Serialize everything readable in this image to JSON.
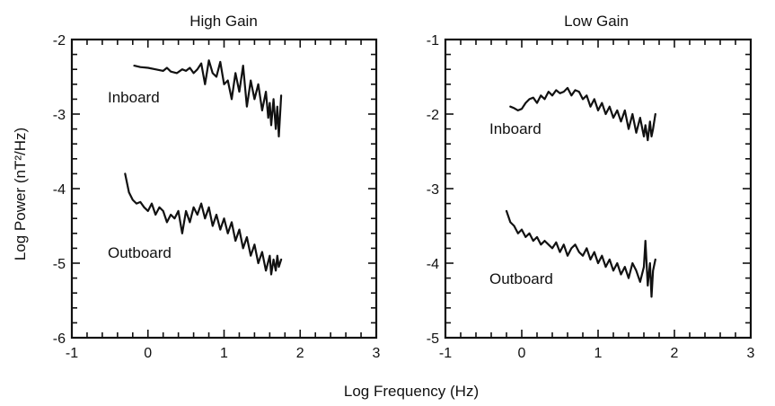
{
  "figure": {
    "ylabel": "Log Power (nT²/Hz)",
    "xlabel": "Log Frequency (Hz)"
  },
  "chart_data": [
    {
      "type": "line",
      "title": "High Gain",
      "xlabel": "Log Frequency (Hz)",
      "ylabel": "Log Power (nT²/Hz)",
      "xlim": [
        -1,
        3
      ],
      "ylim": [
        -6,
        -2
      ],
      "x_ticks": [
        -1,
        0,
        1,
        2,
        3
      ],
      "y_ticks": [
        -6,
        -5,
        -4,
        -3,
        -2
      ],
      "grid": false,
      "legend": "none",
      "series": [
        {
          "name": "Inboard",
          "x": [
            -0.18,
            -0.1,
            0.0,
            0.1,
            0.2,
            0.25,
            0.3,
            0.38,
            0.45,
            0.5,
            0.55,
            0.6,
            0.65,
            0.7,
            0.75,
            0.8,
            0.85,
            0.9,
            0.95,
            1.0,
            1.05,
            1.1,
            1.15,
            1.2,
            1.25,
            1.3,
            1.35,
            1.4,
            1.45,
            1.5,
            1.55,
            1.58,
            1.6,
            1.62,
            1.65,
            1.68,
            1.7,
            1.72,
            1.75
          ],
          "y": [
            -2.35,
            -2.37,
            -2.38,
            -2.4,
            -2.42,
            -2.38,
            -2.43,
            -2.45,
            -2.4,
            -2.42,
            -2.38,
            -2.45,
            -2.4,
            -2.32,
            -2.6,
            -2.28,
            -2.45,
            -2.5,
            -2.3,
            -2.6,
            -2.55,
            -2.8,
            -2.45,
            -2.7,
            -2.35,
            -2.9,
            -2.55,
            -2.8,
            -2.6,
            -2.95,
            -2.7,
            -3.05,
            -2.85,
            -3.15,
            -2.8,
            -3.2,
            -2.9,
            -3.3,
            -2.75
          ]
        },
        {
          "name": "Outboard",
          "x": [
            -0.3,
            -0.25,
            -0.2,
            -0.15,
            -0.1,
            -0.05,
            0.0,
            0.05,
            0.1,
            0.15,
            0.2,
            0.25,
            0.3,
            0.35,
            0.4,
            0.45,
            0.5,
            0.55,
            0.6,
            0.65,
            0.7,
            0.75,
            0.8,
            0.85,
            0.9,
            0.95,
            1.0,
            1.05,
            1.1,
            1.15,
            1.2,
            1.25,
            1.3,
            1.35,
            1.4,
            1.45,
            1.5,
            1.55,
            1.6,
            1.62,
            1.65,
            1.68,
            1.7,
            1.72,
            1.75
          ],
          "y": [
            -3.8,
            -4.05,
            -4.15,
            -4.2,
            -4.18,
            -4.25,
            -4.3,
            -4.2,
            -4.35,
            -4.25,
            -4.3,
            -4.45,
            -4.35,
            -4.4,
            -4.3,
            -4.6,
            -4.3,
            -4.45,
            -4.25,
            -4.35,
            -4.2,
            -4.4,
            -4.25,
            -4.5,
            -4.35,
            -4.55,
            -4.4,
            -4.6,
            -4.45,
            -4.7,
            -4.55,
            -4.8,
            -4.65,
            -4.9,
            -4.75,
            -5.0,
            -4.85,
            -5.1,
            -4.9,
            -5.15,
            -4.95,
            -5.1,
            -4.9,
            -5.05,
            -4.95
          ]
        }
      ]
    },
    {
      "type": "line",
      "title": "Low Gain",
      "xlabel": "Log Frequency (Hz)",
      "ylabel": "Log Power (nT²/Hz)",
      "xlim": [
        -1,
        3
      ],
      "ylim": [
        -5,
        -1
      ],
      "x_ticks": [
        -1,
        0,
        1,
        2,
        3
      ],
      "y_ticks": [
        -5,
        -4,
        -3,
        -2,
        -1
      ],
      "grid": false,
      "legend": "none",
      "series": [
        {
          "name": "Inboard",
          "x": [
            -0.15,
            -0.1,
            -0.05,
            0.0,
            0.05,
            0.1,
            0.15,
            0.2,
            0.25,
            0.3,
            0.35,
            0.4,
            0.45,
            0.5,
            0.55,
            0.6,
            0.65,
            0.7,
            0.75,
            0.8,
            0.85,
            0.9,
            0.95,
            1.0,
            1.05,
            1.1,
            1.15,
            1.2,
            1.25,
            1.3,
            1.35,
            1.4,
            1.45,
            1.5,
            1.55,
            1.6,
            1.62,
            1.65,
            1.68,
            1.7,
            1.72,
            1.75
          ],
          "y": [
            -1.9,
            -1.92,
            -1.95,
            -1.93,
            -1.85,
            -1.8,
            -1.78,
            -1.85,
            -1.75,
            -1.8,
            -1.7,
            -1.75,
            -1.68,
            -1.72,
            -1.7,
            -1.65,
            -1.75,
            -1.68,
            -1.7,
            -1.8,
            -1.75,
            -1.9,
            -1.8,
            -1.95,
            -1.85,
            -2.0,
            -1.9,
            -2.05,
            -1.95,
            -2.1,
            -1.95,
            -2.2,
            -2.0,
            -2.25,
            -2.05,
            -2.3,
            -2.15,
            -2.35,
            -2.1,
            -2.3,
            -2.2,
            -2.0
          ]
        },
        {
          "name": "Outboard",
          "x": [
            -0.2,
            -0.15,
            -0.1,
            -0.05,
            0.0,
            0.05,
            0.1,
            0.15,
            0.2,
            0.25,
            0.3,
            0.35,
            0.4,
            0.45,
            0.5,
            0.55,
            0.6,
            0.65,
            0.7,
            0.75,
            0.8,
            0.85,
            0.9,
            0.95,
            1.0,
            1.05,
            1.1,
            1.15,
            1.2,
            1.25,
            1.3,
            1.35,
            1.4,
            1.45,
            1.5,
            1.55,
            1.6,
            1.62,
            1.65,
            1.68,
            1.7,
            1.72,
            1.75
          ],
          "y": [
            -3.3,
            -3.45,
            -3.5,
            -3.6,
            -3.55,
            -3.65,
            -3.6,
            -3.7,
            -3.65,
            -3.75,
            -3.7,
            -3.75,
            -3.8,
            -3.72,
            -3.85,
            -3.75,
            -3.9,
            -3.8,
            -3.75,
            -3.85,
            -3.9,
            -3.8,
            -3.95,
            -3.85,
            -4.0,
            -3.9,
            -4.05,
            -3.95,
            -4.1,
            -4.0,
            -4.15,
            -4.05,
            -4.2,
            -4.0,
            -4.1,
            -4.25,
            -4.05,
            -3.7,
            -4.3,
            -4.0,
            -4.45,
            -4.1,
            -3.95
          ]
        }
      ]
    }
  ]
}
